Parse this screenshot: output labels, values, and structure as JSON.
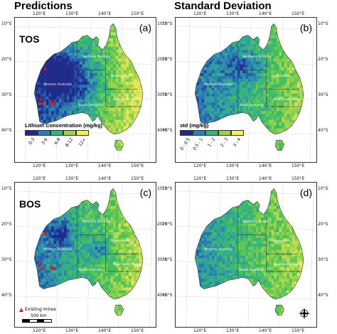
{
  "titles": {
    "left": "Predictions",
    "right": "Standard Deviation"
  },
  "rows": {
    "top": "TOS",
    "bottom": "BOS"
  },
  "panels": {
    "a": {
      "letter": "(a)"
    },
    "b": {
      "letter": "(b)"
    },
    "c": {
      "letter": "(c)"
    },
    "d": {
      "letter": "(d)"
    }
  },
  "lon_ticks": [
    "120°E",
    "130°E",
    "140°E",
    "150°E"
  ],
  "lat_ticks": [
    "10°S",
    "20°S",
    "30°S",
    "40°S"
  ],
  "states": {
    "nt": "Northern Territory",
    "wa": "Western Australia",
    "sa": "South Australia",
    "qld": "Queensland",
    "nsw": "New South Wales"
  },
  "legend_prediction": {
    "title": "Lithium Concentration (mg/kg)",
    "classes": [
      "0-3",
      "3-6",
      "6-8",
      "8-12",
      "12+"
    ],
    "colors": [
      "#1f2a8a",
      "#2a7fb8",
      "#36b37e",
      "#9ad04a",
      "#f5ee5a"
    ]
  },
  "legend_std": {
    "title": "std (mg/kg)",
    "classes": [
      "0 - 0.5",
      "0.5 - 1",
      "1 - 2",
      "2 - 3",
      "3 - 4"
    ],
    "colors": [
      "#1f2a8a",
      "#2a7fb8",
      "#36b37e",
      "#9ad04a",
      "#f5ee5a"
    ]
  },
  "mines_legend": {
    "label": "Existing mines"
  },
  "scale_bar": {
    "label": "500 km"
  },
  "compass": {
    "n": "N",
    "s": "S",
    "e": "E",
    "w": "W"
  }
}
